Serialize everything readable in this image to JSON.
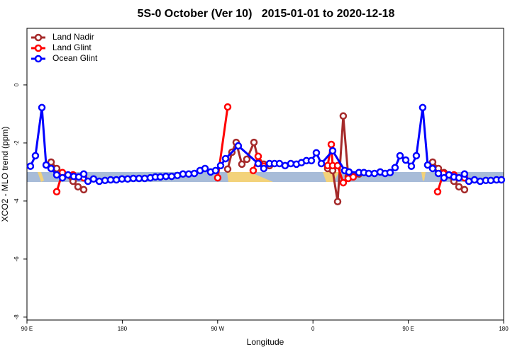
{
  "chart_data": {
    "type": "line",
    "title": "5S-0 October (Ver 10)   2015-01-01 to 2020-12-18",
    "x_label": "Longitude",
    "y_label": "XCO2 - MLO trend (ppm)",
    "xlim": [
      90,
      540
    ],
    "ylim": [
      -8.1,
      1.95
    ],
    "xticks": [
      {
        "value": 90,
        "label": "90 E"
      },
      {
        "value": 180,
        "label": "180"
      },
      {
        "value": 270,
        "label": "90 W"
      },
      {
        "value": 360,
        "label": "0"
      },
      {
        "value": 450,
        "label": "90 E"
      },
      {
        "value": 540,
        "label": "180"
      }
    ],
    "yticks": [
      0,
      -2,
      -4,
      -6,
      -8
    ],
    "legend": "top-left",
    "series": [
      {
        "name": "Land Nadir",
        "color": "#a52a2a",
        "x": [
          112.8,
          118.1,
          133.5,
          138.2,
          143.6,
          null,
          279.5,
          283.5,
          287.5,
          292.9,
          297.6,
          304.3,
          309.0,
          313.6,
          319.0,
          null,
          373.9,
          378.6,
          383.3,
          388.6,
          393.3,
          398.0,
          403.4,
          null,
          473.0,
          478.4,
          483.7,
          493.1,
          497.8,
          503.1
        ],
        "values": [
          -2.66,
          -2.88,
          -3.32,
          -3.51,
          -3.61,
          null,
          -2.9,
          -2.32,
          -1.98,
          -2.73,
          -2.56,
          -1.98,
          -2.66,
          -2.73,
          -2.78,
          null,
          -2.88,
          -2.95,
          -4.02,
          -1.07,
          -3.15,
          -3.15,
          -3.07,
          null,
          -2.66,
          -2.88,
          -3.02,
          -3.32,
          -3.51,
          -3.61
        ]
      },
      {
        "name": "Land Glint",
        "color": "#ff0000",
        "x": [
          118.1,
          123.5,
          133.5,
          143.6,
          null,
          270.1,
          279.5,
          null,
          303.6,
          308.3,
          313.6,
          null,
          373.9,
          377.3,
          378.6,
          383.3,
          388.6,
          393.3,
          398.0,
          null,
          477.7,
          483.1,
          493.1,
          503.1
        ],
        "values": [
          -3.68,
          -3.02,
          -3.1,
          -3.2,
          null,
          -3.2,
          -0.76,
          null,
          -2.95,
          -2.46,
          -2.8,
          null,
          -2.78,
          -2.05,
          -2.78,
          -2.78,
          -3.37,
          -3.22,
          -3.17,
          null,
          -3.68,
          -3.05,
          -3.1,
          -3.2
        ]
      },
      {
        "name": "Ocean Glint",
        "color": "#0000ff",
        "x": [
          93.3,
          98.0,
          104.1,
          108.1,
          112.8,
          118.1,
          123.5,
          128.8,
          134.2,
          138.9,
          143.6,
          147.6,
          152.9,
          158.3,
          163.7,
          169.0,
          174.4,
          179.7,
          185.1,
          190.4,
          195.8,
          201.2,
          206.5,
          211.2,
          215.9,
          221.2,
          226.6,
          232.0,
          237.3,
          242.7,
          248.0,
          253.4,
          258.1,
          263.4,
          268.1,
          272.8,
          277.5,
          289.5,
          308.3,
          313.6,
          319.0,
          323.7,
          328.4,
          333.7,
          339.1,
          344.4,
          349.1,
          353.8,
          358.5,
          363.2,
          367.9,
          378.6,
          390.0,
          394.0,
          403.4,
          408.1,
          412.7,
          418.1,
          423.5,
          428.1,
          432.8,
          437.5,
          442.2,
          447.6,
          452.9,
          457.6,
          463.6,
          468.3,
          473.0,
          478.4,
          483.7,
          488.4,
          493.1,
          497.8,
          503.1,
          507.2,
          512.5,
          517.9,
          523.2,
          527.9,
          533.3,
          537.9
        ],
        "values": [
          -2.8,
          -2.44,
          -0.78,
          -2.76,
          -2.88,
          -3.1,
          -3.2,
          -3.1,
          -3.15,
          -3.17,
          -3.07,
          -3.32,
          -3.24,
          -3.32,
          -3.29,
          -3.27,
          -3.27,
          -3.24,
          -3.24,
          -3.22,
          -3.22,
          -3.22,
          -3.2,
          -3.17,
          -3.17,
          -3.15,
          -3.15,
          -3.12,
          -3.07,
          -3.07,
          -3.05,
          -2.95,
          -2.88,
          -3.0,
          -2.95,
          -2.78,
          -2.54,
          -2.1,
          -2.71,
          -2.88,
          -2.71,
          -2.71,
          -2.71,
          -2.78,
          -2.71,
          -2.73,
          -2.68,
          -2.61,
          -2.61,
          -2.34,
          -2.71,
          -2.27,
          -2.95,
          -3.0,
          -3.02,
          -3.02,
          -3.05,
          -3.05,
          -3.0,
          -3.05,
          -3.02,
          -2.85,
          -2.44,
          -2.59,
          -2.8,
          -2.44,
          -0.78,
          -2.76,
          -2.88,
          -3.05,
          -3.2,
          -3.1,
          -3.17,
          -3.2,
          -3.07,
          -3.32,
          -3.27,
          -3.32,
          -3.29,
          -3.29,
          -3.27,
          -3.27
        ]
      }
    ]
  }
}
